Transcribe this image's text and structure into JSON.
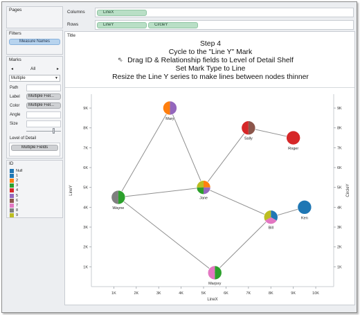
{
  "pages_panel": {
    "title": "Pages"
  },
  "filters_panel": {
    "title": "Filters",
    "items": [
      "Measure Names"
    ]
  },
  "marks_panel": {
    "title": "Marks",
    "selector": "All",
    "mark_type": "Multiple",
    "fields": [
      {
        "label": "Path",
        "value": ""
      },
      {
        "label": "Label",
        "value": "Multiple Fiel..."
      },
      {
        "label": "Color",
        "value": "Multiple Fiel..."
      },
      {
        "label": "Angle",
        "value": ""
      },
      {
        "label": "Size",
        "value": ""
      }
    ],
    "lod_label": "Level of Detail",
    "lod_value": "Multiple Fields"
  },
  "legend": {
    "title": "ID",
    "items": [
      {
        "label": "Null",
        "color": "#1f77b4"
      },
      {
        "label": "1",
        "color": "#1f77b4"
      },
      {
        "label": "2",
        "color": "#ff7f0e"
      },
      {
        "label": "3",
        "color": "#2ca02c"
      },
      {
        "label": "4",
        "color": "#d62728"
      },
      {
        "label": "5",
        "color": "#9467bd"
      },
      {
        "label": "6",
        "color": "#8c564b"
      },
      {
        "label": "7",
        "color": "#e377c2"
      },
      {
        "label": "8",
        "color": "#7f7f7f"
      },
      {
        "label": "9",
        "color": "#bcbd22"
      }
    ]
  },
  "shelves": {
    "columns_label": "Columns",
    "rows_label": "Rows",
    "columns": [
      "LineX"
    ],
    "rows": [
      "LineY",
      "CircleY"
    ]
  },
  "title_panel": {
    "label": "Title"
  },
  "instructions": [
    "Step 4",
    "Cycle to the \"Line Y\" Mark",
    "Drag ID & Relationship fields to Level of Detail Shelf",
    "Set Mark Type to Line",
    "Resize the Line Y series to make lines between nodes thinner"
  ],
  "chart_data": {
    "type": "scatter",
    "xlabel": "LineX",
    "ylabel_left": "LineY",
    "ylabel_right": "CircleY",
    "xlim": [
      0,
      10800
    ],
    "ylim": [
      0,
      9700
    ],
    "x_ticks": [
      1000,
      2000,
      3000,
      4000,
      5000,
      6000,
      7000,
      8000,
      9000,
      10000
    ],
    "x_tick_labels": [
      "1K",
      "2K",
      "3K",
      "4K",
      "5K",
      "6K",
      "7K",
      "8K",
      "9K",
      "10K"
    ],
    "y_ticks": [
      1000,
      2000,
      3000,
      4000,
      5000,
      6000,
      7000,
      8000,
      9000
    ],
    "y_tick_labels": [
      "1K",
      "2K",
      "3K",
      "4K",
      "5K",
      "6K",
      "7K",
      "8K",
      "9K"
    ],
    "nodes": [
      {
        "name": "Mary",
        "x": 3500,
        "y": 9000,
        "colors": [
          "#9467bd",
          "#ff7f0e"
        ]
      },
      {
        "name": "Sally",
        "x": 7000,
        "y": 8000,
        "colors": [
          "#8c564b",
          "#d62728"
        ]
      },
      {
        "name": "Roger",
        "x": 9000,
        "y": 7500,
        "colors": [
          "#d62728"
        ]
      },
      {
        "name": "Jane",
        "x": 5000,
        "y": 5000,
        "colors": [
          "#ff7f0e",
          "#9467bd",
          "#2ca02c",
          "#bcbd22"
        ]
      },
      {
        "name": "Wayne",
        "x": 1200,
        "y": 4500,
        "colors": [
          "#2ca02c",
          "#7f7f7f"
        ]
      },
      {
        "name": "Ken",
        "x": 9500,
        "y": 4000,
        "colors": [
          "#1f77b4"
        ]
      },
      {
        "name": "Bill",
        "x": 8000,
        "y": 3500,
        "colors": [
          "#1f77b4",
          "#e377c2",
          "#bcbd22"
        ]
      },
      {
        "name": "Marjory",
        "x": 5500,
        "y": 700,
        "colors": [
          "#2ca02c",
          "#e377c2"
        ]
      }
    ],
    "edges": [
      [
        "Wayne",
        "Mary"
      ],
      [
        "Mary",
        "Jane"
      ],
      [
        "Wayne",
        "Jane"
      ],
      [
        "Jane",
        "Sally"
      ],
      [
        "Jane",
        "Bill"
      ],
      [
        "Bill",
        "Ken"
      ],
      [
        "Wayne",
        "Marjory"
      ],
      [
        "Marjory",
        "Bill"
      ],
      [
        "Sally",
        "Roger"
      ]
    ]
  }
}
